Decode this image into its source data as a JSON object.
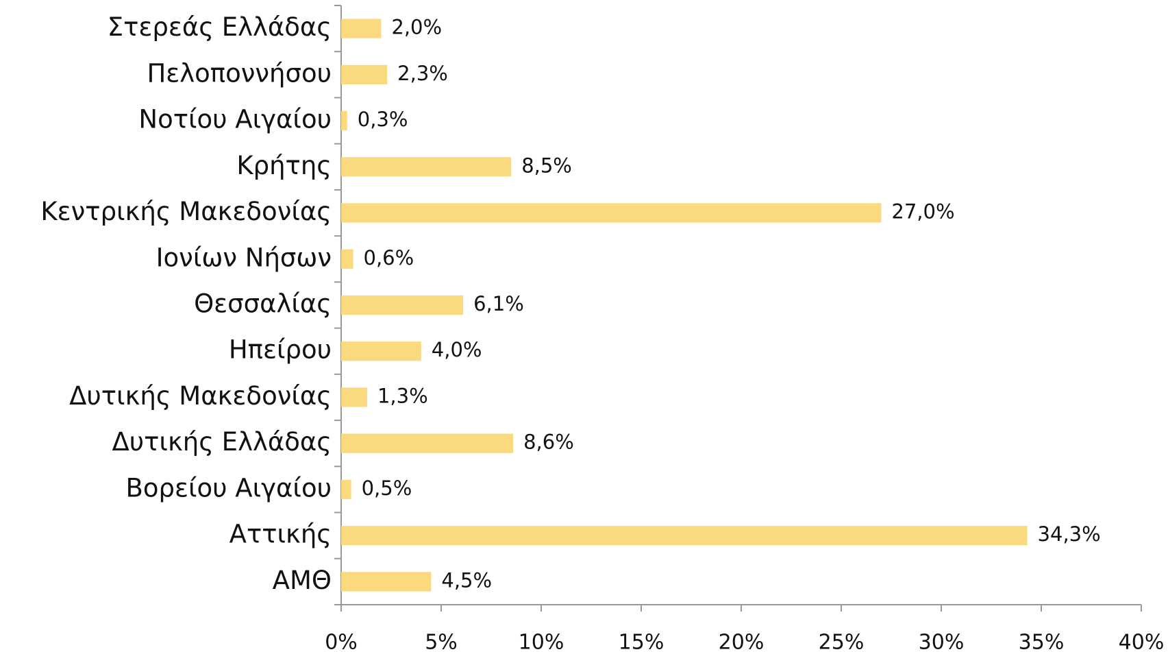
{
  "chart_data": {
    "type": "bar",
    "orientation": "horizontal",
    "categories": [
      "Στερεάς Ελλάδας",
      "Πελοποννήσου",
      "Νοτίου Αιγαίου",
      "Κρήτης",
      "Κεντρικής Μακεδονίας",
      "Ιονίων Νήσων",
      "Θεσσαλίας",
      "Ηπείρου",
      "Δυτικής Μακεδονίας",
      "Δυτικής Ελλάδας",
      "Βορείου Αιγαίου",
      "Αττικής",
      "ΑΜΘ"
    ],
    "values": [
      2.0,
      2.3,
      0.3,
      8.5,
      27.0,
      0.6,
      6.1,
      4.0,
      1.3,
      8.6,
      0.5,
      34.3,
      4.5
    ],
    "value_labels": [
      "2,0%",
      "2,3%",
      "0,3%",
      "8,5%",
      "27,0%",
      "0,6%",
      "6,1%",
      "4,0%",
      "1,3%",
      "8,6%",
      "0,5%",
      "34,3%",
      "4,5%"
    ],
    "color": "#fad97f",
    "xlim": [
      0,
      40
    ],
    "xticks": [
      {
        "value": 0,
        "label": "0%"
      },
      {
        "value": 5,
        "label": "5%"
      },
      {
        "value": 10,
        "label": "10%"
      },
      {
        "value": 15,
        "label": "15%"
      },
      {
        "value": 20,
        "label": "20%"
      },
      {
        "value": 25,
        "label": "25%"
      },
      {
        "value": 30,
        "label": "30%"
      },
      {
        "value": 35,
        "label": "35%"
      },
      {
        "value": 40,
        "label": "40%"
      }
    ]
  }
}
